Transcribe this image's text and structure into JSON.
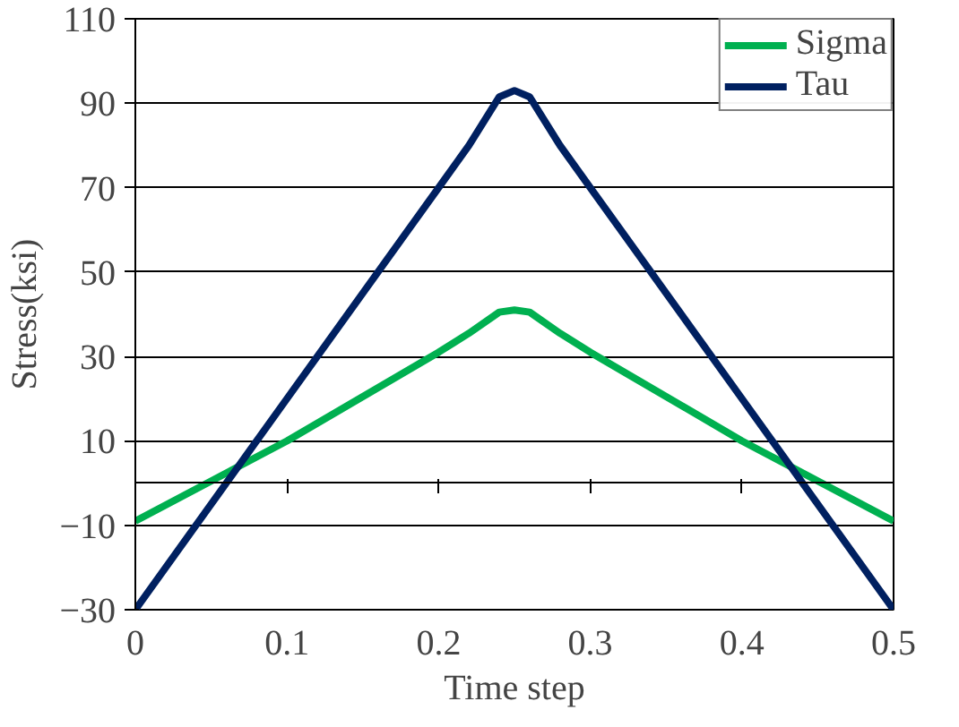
{
  "chart_data": {
    "type": "line",
    "xlabel": "Time step",
    "ylabel": "Stress(ksi)",
    "xlim": [
      0,
      0.5
    ],
    "ylim": [
      -30,
      110
    ],
    "xticks": [
      0,
      0.1,
      0.2,
      0.3,
      0.4,
      0.5
    ],
    "yticks": [
      -30,
      -10,
      10,
      30,
      50,
      70,
      90,
      110
    ],
    "grid": "y",
    "legend": "top right",
    "marker": "none",
    "line_style": "solid",
    "series": [
      {
        "name": "Sigma",
        "color": "#00b050",
        "x": [
          0,
          0.1,
          0.2,
          0.22,
          0.24,
          0.25,
          0.26,
          0.28,
          0.3,
          0.4,
          0.5
        ],
        "values": [
          -9,
          10,
          31,
          35.5,
          40.5,
          41,
          40.5,
          35.5,
          31,
          10,
          -9
        ]
      },
      {
        "name": "Tau",
        "color": "#002060",
        "x": [
          0,
          0.1,
          0.2,
          0.22,
          0.24,
          0.25,
          0.26,
          0.28,
          0.3,
          0.4,
          0.5
        ],
        "values": [
          -30,
          20,
          70,
          80,
          91.5,
          93,
          91.5,
          80,
          70,
          20,
          -30
        ]
      }
    ]
  }
}
